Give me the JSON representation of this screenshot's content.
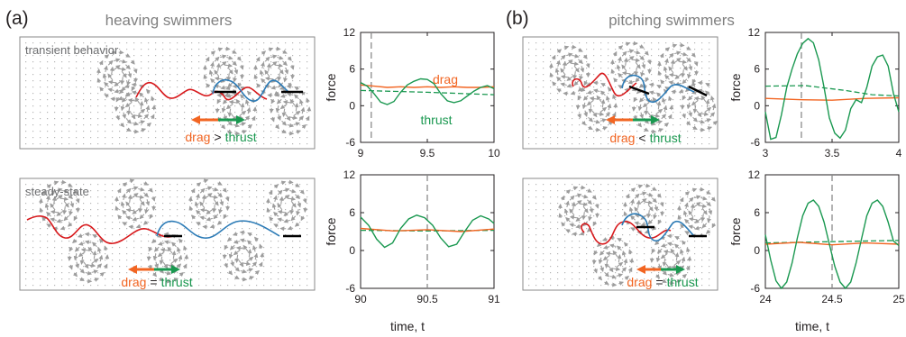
{
  "figure": {
    "panel_labels": [
      "(a)",
      "(b)"
    ],
    "titles": [
      "heaving swimmers",
      "pitching swimmers"
    ],
    "row_labels": [
      "transient behavior",
      "steady-state"
    ],
    "relations": [
      {
        "left": "drag",
        "op": ">",
        "right": "thrust"
      },
      {
        "left": "drag",
        "op": "<",
        "right": "thrust"
      },
      {
        "left": "drag",
        "op": "=",
        "right": "thrust"
      },
      {
        "left": "drag",
        "op": "=",
        "right": "thrust"
      }
    ],
    "curve_labels": {
      "drag": "drag",
      "thrust": "thrust"
    },
    "axis": {
      "ylabel": "force",
      "xlabel": "time, t"
    },
    "colors": {
      "drag": "#f26522",
      "thrust": "#1a9850",
      "red_path": "#d7191c",
      "blue_path": "#2c7bb6",
      "body": "#000000",
      "arrows": "#9d9d9d"
    }
  },
  "chart_data": [
    {
      "type": "line",
      "id": "a-transient",
      "xlim": [
        9,
        10
      ],
      "ylim": [
        -6,
        12
      ],
      "xticks": [
        9,
        9.5,
        10
      ],
      "yticks": [
        -6,
        0,
        6,
        12
      ],
      "marker_x": 9.08,
      "series": [
        {
          "name": "drag",
          "style": "solid",
          "color": "#f26522",
          "x": [
            9,
            9.1,
            9.2,
            9.3,
            9.4,
            9.5,
            9.6,
            9.7,
            9.8,
            9.9,
            10
          ],
          "y": [
            3.4,
            3.2,
            3.0,
            3.1,
            3.0,
            3.1,
            3.0,
            3.1,
            3.0,
            3.0,
            3.1
          ]
        },
        {
          "name": "thrust",
          "style": "solid",
          "color": "#1a9850",
          "x": [
            9,
            9.05,
            9.1,
            9.15,
            9.2,
            9.25,
            9.3,
            9.35,
            9.4,
            9.45,
            9.5,
            9.55,
            9.6,
            9.65,
            9.7,
            9.75,
            9.8,
            9.85,
            9.9,
            9.95,
            10
          ],
          "y": [
            3.8,
            3.2,
            2.0,
            0.6,
            0.2,
            0.7,
            2.2,
            3.4,
            4.0,
            4.4,
            4.3,
            3.6,
            2.0,
            0.8,
            0.5,
            0.8,
            1.6,
            2.4,
            3.0,
            3.3,
            2.8
          ]
        },
        {
          "name": "",
          "style": "dashed",
          "color": "#1a9850",
          "x": [
            9,
            9.5,
            10
          ],
          "y": [
            2.5,
            2.2,
            1.8
          ]
        }
      ]
    },
    {
      "type": "line",
      "id": "a-steady",
      "xlim": [
        90,
        91
      ],
      "ylim": [
        -6,
        12
      ],
      "xticks": [
        90,
        90.5,
        91
      ],
      "yticks": [
        -6,
        0,
        6,
        12
      ],
      "marker_x": 90.5,
      "series": [
        {
          "name": "drag",
          "style": "solid",
          "color": "#f26522",
          "x": [
            90,
            90.25,
            90.5,
            90.75,
            91
          ],
          "y": [
            3.5,
            3.1,
            3.3,
            3.0,
            3.4
          ]
        },
        {
          "name": "thrust",
          "style": "solid",
          "color": "#1a9850",
          "x": [
            90,
            90.06,
            90.12,
            90.18,
            90.24,
            90.3,
            90.36,
            90.42,
            90.48,
            90.54,
            90.6,
            90.66,
            90.72,
            90.78,
            90.84,
            90.9,
            90.96,
            91
          ],
          "y": [
            5.3,
            4.0,
            1.8,
            0.5,
            1.2,
            3.5,
            5.0,
            5.6,
            5.2,
            4.0,
            2.0,
            0.6,
            1.0,
            3.0,
            4.8,
            5.5,
            5.0,
            4.3
          ]
        },
        {
          "name": "",
          "style": "dashed",
          "color": "#1a9850",
          "x": [
            90,
            90.5,
            91
          ],
          "y": [
            3.2,
            3.1,
            3.2
          ]
        }
      ]
    },
    {
      "type": "line",
      "id": "b-transient",
      "xlim": [
        3,
        4
      ],
      "ylim": [
        -6,
        12
      ],
      "xticks": [
        3,
        3.5,
        4
      ],
      "yticks": [
        -6,
        0,
        6,
        12
      ],
      "marker_x": 3.27,
      "series": [
        {
          "name": "drag",
          "style": "solid",
          "color": "#f26522",
          "x": [
            3,
            3.25,
            3.5,
            3.75,
            4
          ],
          "y": [
            1.2,
            1.0,
            0.9,
            1.2,
            1.3
          ]
        },
        {
          "name": "thrust",
          "style": "solid",
          "color": "#1a9850",
          "x": [
            3,
            3.04,
            3.08,
            3.12,
            3.16,
            3.2,
            3.24,
            3.28,
            3.32,
            3.36,
            3.4,
            3.44,
            3.48,
            3.52,
            3.56,
            3.6,
            3.64,
            3.68,
            3.72,
            3.76,
            3.8,
            3.84,
            3.88,
            3.92,
            3.96,
            4
          ],
          "y": [
            -1.0,
            -5.5,
            -5.2,
            -1.5,
            3.0,
            6.0,
            8.5,
            10.2,
            11.0,
            10.3,
            7.5,
            3.0,
            -2.0,
            -4.5,
            -5.3,
            -4.0,
            -0.5,
            1.0,
            0.5,
            3.0,
            6.5,
            8.0,
            8.3,
            6.5,
            2.0,
            -1.0
          ]
        },
        {
          "name": "",
          "style": "dashed",
          "color": "#1a9850",
          "x": [
            3,
            3.3,
            3.6,
            3.8,
            4
          ],
          "y": [
            3.2,
            3.3,
            2.5,
            1.8,
            1.6
          ]
        }
      ]
    },
    {
      "type": "line",
      "id": "b-steady",
      "xlim": [
        24,
        25
      ],
      "ylim": [
        -6,
        12
      ],
      "xticks": [
        24,
        24.5,
        25
      ],
      "yticks": [
        -6,
        0,
        6,
        12
      ],
      "marker_x": 24.5,
      "series": [
        {
          "name": "drag",
          "style": "solid",
          "color": "#f26522",
          "x": [
            24,
            24.25,
            24.5,
            24.75,
            25
          ],
          "y": [
            1.0,
            1.3,
            0.9,
            1.2,
            1.0
          ]
        },
        {
          "name": "thrust",
          "style": "solid",
          "color": "#1a9850",
          "x": [
            24,
            24.04,
            24.08,
            24.12,
            24.16,
            24.2,
            24.24,
            24.28,
            24.32,
            24.36,
            24.4,
            24.44,
            24.48,
            24.52,
            24.56,
            24.6,
            24.64,
            24.68,
            24.72,
            24.76,
            24.8,
            24.84,
            24.88,
            24.92,
            24.96,
            25
          ],
          "y": [
            2.5,
            -1.5,
            -4.8,
            -6.0,
            -5.0,
            -2.0,
            2.0,
            5.5,
            7.5,
            8.0,
            7.0,
            4.5,
            1.0,
            -2.5,
            -5.0,
            -6.0,
            -5.0,
            -2.0,
            1.8,
            5.5,
            7.5,
            8.0,
            7.0,
            4.5,
            1.5,
            0.8
          ]
        },
        {
          "name": "",
          "style": "dashed",
          "color": "#1a9850",
          "x": [
            24,
            24.5,
            25
          ],
          "y": [
            1.2,
            1.4,
            1.6
          ]
        }
      ]
    }
  ]
}
